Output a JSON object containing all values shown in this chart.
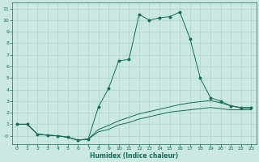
{
  "xlabel": "Humidex (Indice chaleur)",
  "bg_color": "#c8e8e0",
  "grid_color": "#a8d0c8",
  "line_color": "#1a6a5a",
  "xlim": [
    -0.5,
    23.5
  ],
  "ylim": [
    -0.7,
    11.5
  ],
  "xticks": [
    0,
    1,
    2,
    3,
    4,
    5,
    6,
    7,
    8,
    9,
    10,
    11,
    12,
    13,
    14,
    15,
    16,
    17,
    18,
    19,
    20,
    21,
    22,
    23
  ],
  "yticks": [
    0,
    1,
    2,
    3,
    4,
    5,
    6,
    7,
    8,
    9,
    10,
    11
  ],
  "line1_x": [
    0,
    1,
    2,
    3,
    4,
    5,
    6,
    7,
    8,
    9,
    10,
    11,
    12,
    13,
    14,
    15,
    16,
    17,
    18,
    19,
    20,
    21,
    22,
    23
  ],
  "line1_y": [
    1.0,
    1.0,
    0.15,
    0.05,
    0.0,
    -0.12,
    -0.38,
    -0.28,
    2.5,
    4.1,
    6.5,
    6.6,
    10.5,
    10.0,
    10.2,
    10.3,
    10.7,
    8.4,
    5.0,
    3.3,
    3.0,
    2.6,
    2.4,
    2.4
  ],
  "line2_x": [
    0,
    1,
    2,
    3,
    4,
    5,
    6,
    7,
    8,
    9,
    10,
    11,
    12,
    13,
    14,
    15,
    16,
    17,
    18,
    19,
    20,
    21,
    22,
    23
  ],
  "line2_y": [
    1.0,
    1.0,
    0.15,
    0.05,
    0.0,
    -0.12,
    -0.38,
    -0.28,
    0.55,
    0.9,
    1.3,
    1.6,
    1.9,
    2.1,
    2.3,
    2.5,
    2.7,
    2.85,
    2.95,
    3.05,
    2.85,
    2.6,
    2.45,
    2.45
  ],
  "line3_x": [
    0,
    1,
    2,
    3,
    4,
    5,
    6,
    7,
    8,
    9,
    10,
    11,
    12,
    13,
    14,
    15,
    16,
    17,
    18,
    19,
    20,
    21,
    22,
    23
  ],
  "line3_y": [
    1.0,
    1.0,
    0.15,
    0.05,
    0.0,
    -0.12,
    -0.38,
    -0.28,
    0.35,
    0.55,
    0.95,
    1.15,
    1.45,
    1.65,
    1.85,
    2.05,
    2.15,
    2.25,
    2.35,
    2.45,
    2.35,
    2.25,
    2.25,
    2.25
  ],
  "xlabel_fontsize": 5.5,
  "tick_fontsize": 4.5,
  "lw": 0.7,
  "marker_size": 1.8
}
